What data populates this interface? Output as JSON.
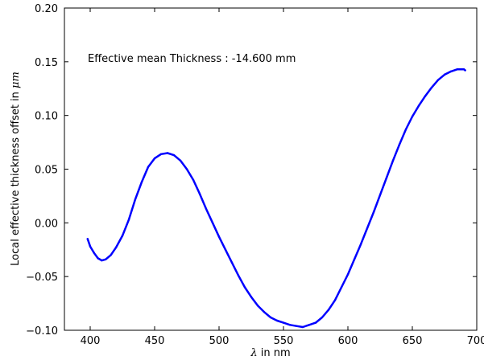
{
  "chart_data": {
    "type": "line",
    "title": "",
    "xlabel_symbol": "λ",
    "xlabel_rest": " in nm",
    "ylabel_text": "Local effective thickness offset in ",
    "ylabel_unit": "μm",
    "annotation": "Effective mean Thickness : -14.600 mm",
    "xlim": [
      380,
      700
    ],
    "ylim": [
      -0.1,
      0.2
    ],
    "xticks": [
      400,
      450,
      500,
      550,
      600,
      650,
      700
    ],
    "xtick_labels": [
      "400",
      "450",
      "500",
      "550",
      "600",
      "650",
      "700"
    ],
    "yticks": [
      -0.1,
      -0.05,
      0.0,
      0.05,
      0.1,
      0.15,
      0.2
    ],
    "ytick_labels": [
      "−0.10",
      "−0.05",
      "0.00",
      "0.05",
      "0.10",
      "0.15",
      "0.20"
    ],
    "grid": false,
    "series": [
      {
        "color": "#0000ff",
        "x": [
          398,
          400,
          403,
          406,
          409,
          412,
          416,
          420,
          425,
          430,
          435,
          440,
          445,
          450,
          455,
          460,
          465,
          470,
          475,
          480,
          485,
          490,
          495,
          500,
          505,
          510,
          515,
          520,
          525,
          530,
          535,
          540,
          545,
          550,
          555,
          560,
          565,
          570,
          575,
          580,
          585,
          590,
          595,
          600,
          605,
          610,
          615,
          620,
          625,
          630,
          635,
          640,
          645,
          650,
          655,
          660,
          665,
          670,
          675,
          680,
          685,
          688,
          690,
          691
        ],
        "y": [
          -0.015,
          -0.022,
          -0.028,
          -0.033,
          -0.035,
          -0.034,
          -0.03,
          -0.023,
          -0.012,
          0.003,
          0.022,
          0.038,
          0.052,
          0.06,
          0.064,
          0.065,
          0.063,
          0.058,
          0.05,
          0.04,
          0.027,
          0.013,
          0.0,
          -0.013,
          -0.025,
          -0.037,
          -0.049,
          -0.06,
          -0.069,
          -0.077,
          -0.083,
          -0.088,
          -0.091,
          -0.093,
          -0.095,
          -0.096,
          -0.097,
          -0.095,
          -0.093,
          -0.088,
          -0.081,
          -0.072,
          -0.06,
          -0.048,
          -0.034,
          -0.02,
          -0.005,
          0.01,
          0.026,
          0.042,
          0.058,
          0.073,
          0.087,
          0.099,
          0.109,
          0.118,
          0.126,
          0.133,
          0.138,
          0.141,
          0.143,
          0.143,
          0.143,
          0.142
        ]
      }
    ]
  }
}
